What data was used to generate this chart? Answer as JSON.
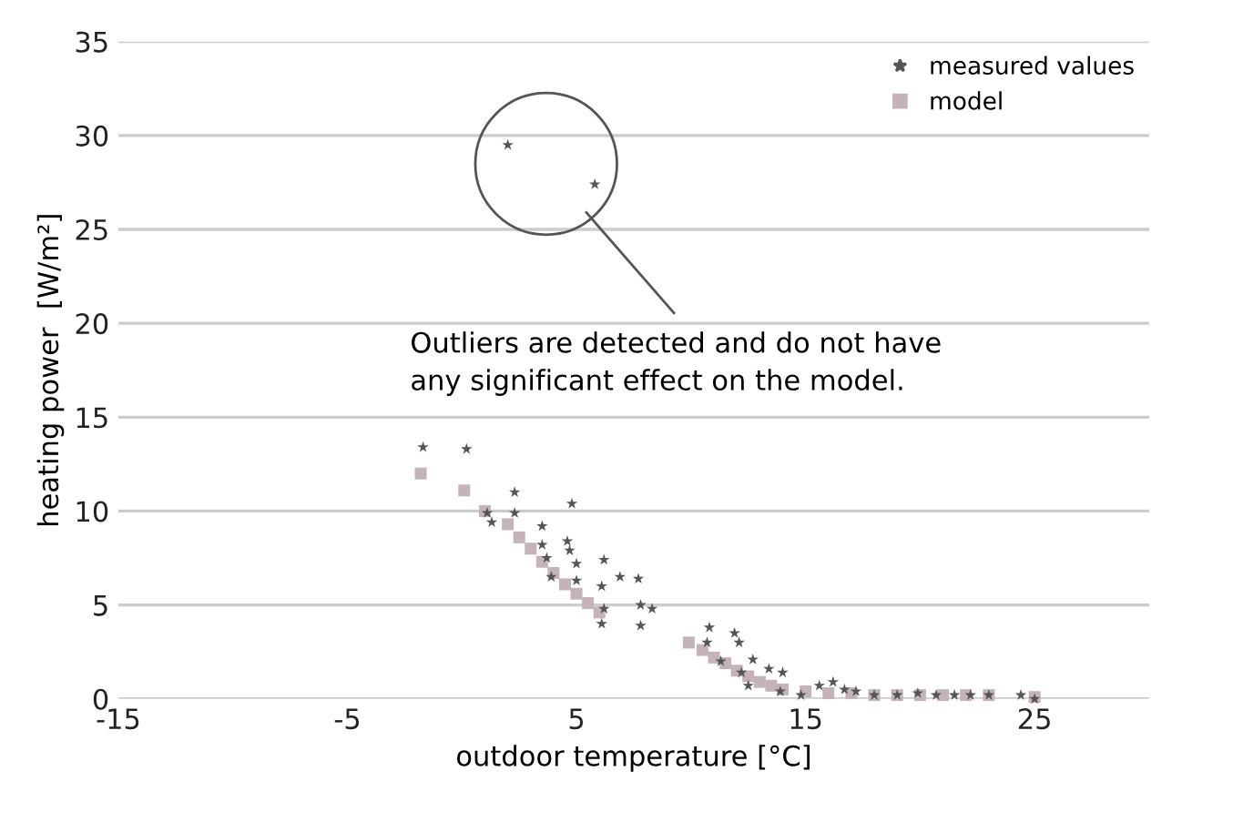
{
  "chart_data": {
    "type": "scatter",
    "xlabel": "outdoor temperature [°C]",
    "ylabel": "heating power  [W/m²]",
    "xlim": [
      -15,
      30
    ],
    "xticks": [
      -15,
      -5,
      5,
      15,
      25
    ],
    "ylim": [
      0,
      35
    ],
    "yticks": [
      0,
      5,
      10,
      15,
      20,
      25,
      30,
      35
    ],
    "grid": "y",
    "legend": "top right",
    "annotations": [
      "Outliers are detected and do not have\nany significant effect on the model."
    ],
    "series": [
      {
        "name": "measured values",
        "color": "#555555",
        "marker": "star",
        "x": [
          2.0,
          5.8,
          -1.7,
          0.2,
          1.1,
          1.3,
          2.3,
          2.3,
          3.5,
          3.5,
          3.7,
          3.9,
          4.8,
          4.6,
          4.7,
          5.0,
          5.0,
          6.2,
          6.1,
          6.2,
          6.1,
          6.9,
          7.7,
          7.8,
          8.3,
          7.8,
          10.8,
          10.7,
          11.9,
          12.1,
          11.3,
          12.7,
          12.2,
          13.4,
          14.0,
          12.5,
          13.9,
          14.8,
          15.6,
          16.2,
          16.7,
          17.2,
          18.0,
          19.0,
          19.9,
          20.7,
          21.5,
          22.2,
          23.0,
          24.4,
          25.0
        ],
        "values": [
          29.5,
          27.4,
          13.4,
          13.3,
          9.9,
          9.4,
          11.0,
          9.9,
          9.2,
          8.2,
          7.5,
          6.5,
          10.4,
          8.4,
          7.9,
          7.2,
          6.3,
          7.4,
          6.0,
          4.8,
          4.0,
          6.5,
          6.4,
          5.0,
          4.8,
          3.9,
          3.8,
          3.0,
          3.5,
          3.0,
          2.0,
          2.1,
          1.4,
          1.6,
          1.4,
          0.7,
          0.4,
          0.2,
          0.7,
          0.9,
          0.5,
          0.4,
          0.2,
          0.2,
          0.3,
          0.2,
          0.2,
          0.2,
          0.2,
          0.2,
          0.0
        ]
      },
      {
        "name": "model",
        "color": "#c4b4b8",
        "marker": "square",
        "x": [
          -1.8,
          0.1,
          1.0,
          2.0,
          2.5,
          3.0,
          3.5,
          4.0,
          4.5,
          5.0,
          5.5,
          6.0,
          9.9,
          10.5,
          11.0,
          11.5,
          12.0,
          12.5,
          13.0,
          13.5,
          14.0,
          15.0,
          16.0,
          17.0,
          18.0,
          19.0,
          20.0,
          21.0,
          22.0,
          23.0,
          25.0
        ],
        "values": [
          12.0,
          11.1,
          10.0,
          9.3,
          8.6,
          8.0,
          7.3,
          6.7,
          6.1,
          5.6,
          5.1,
          4.6,
          3.0,
          2.6,
          2.2,
          1.9,
          1.5,
          1.2,
          0.9,
          0.7,
          0.5,
          0.4,
          0.3,
          0.3,
          0.2,
          0.2,
          0.2,
          0.2,
          0.2,
          0.2,
          0.1
        ]
      }
    ]
  }
}
